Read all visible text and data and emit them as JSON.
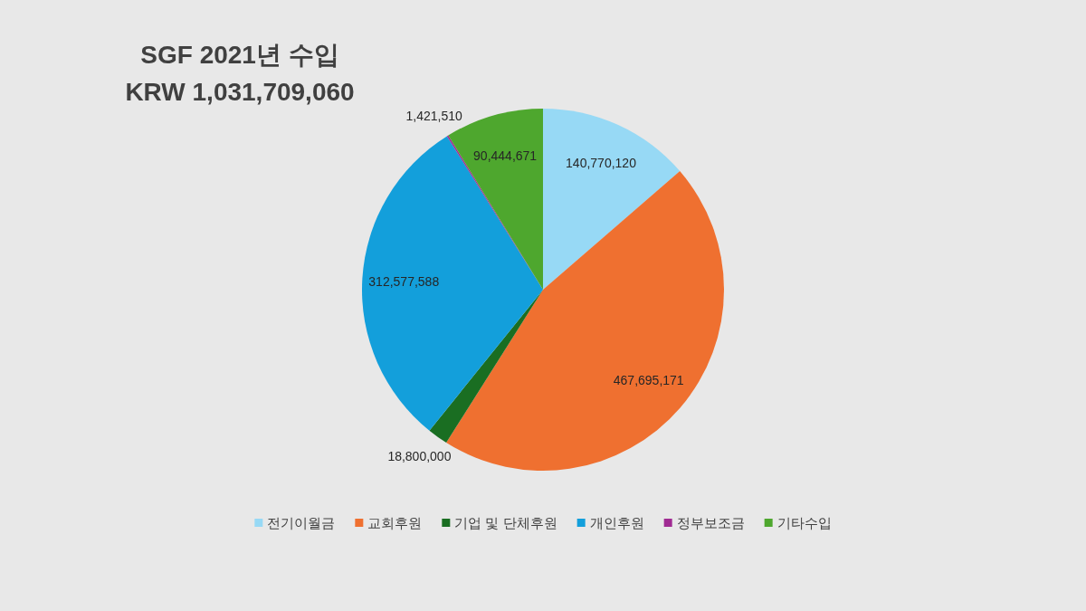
{
  "chart_data": {
    "type": "pie",
    "title": "SGF 2021년 수입",
    "subtitle": "KRW 1,031,709,060",
    "categories": [
      "전기이월금",
      "교회후원",
      "기업 및 단체후원",
      "개인후원",
      "정부보조금",
      "기타수입"
    ],
    "values": [
      140770120,
      467695171,
      18800000,
      312577588,
      1421510,
      90444671
    ],
    "colors": [
      "#97d9f5",
      "#ef7030",
      "#1a6e22",
      "#139fdb",
      "#a02b93",
      "#4ea72e"
    ],
    "value_labels": [
      "140,770,120",
      "467,695,171",
      "18,800,000",
      "312,577,588",
      "1,421,510",
      "90,444,671"
    ],
    "legend": "bottom"
  }
}
